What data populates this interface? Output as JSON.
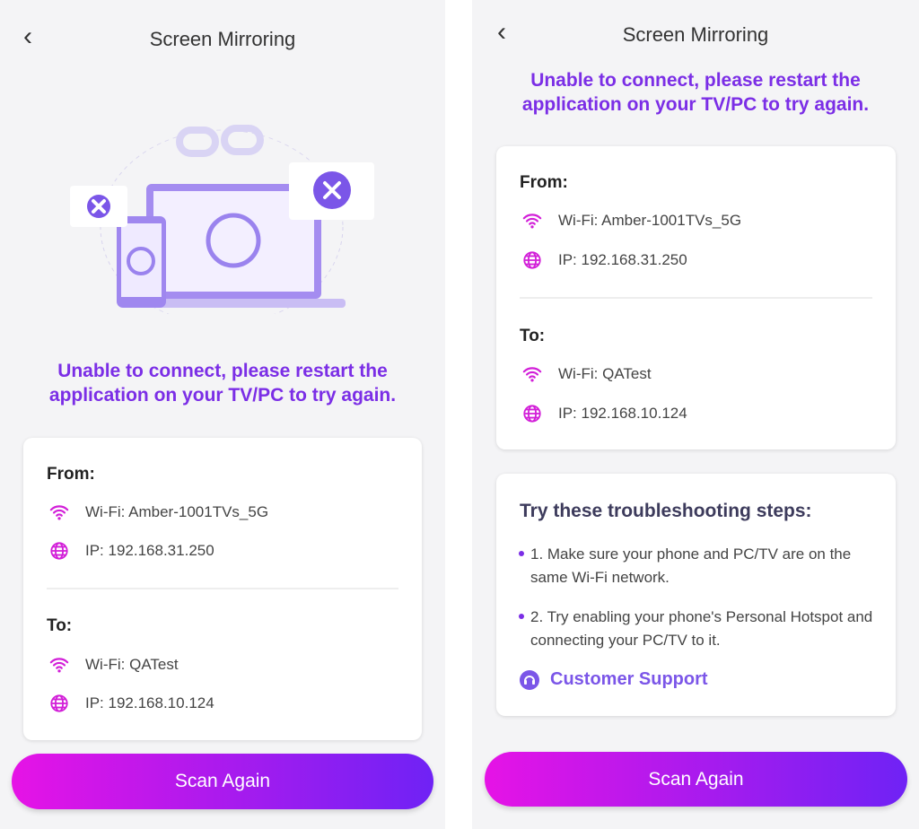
{
  "screens": [
    {
      "title": "Screen Mirroring",
      "message": "Unable to connect, please restart the application on your TV/PC to try again.",
      "from": {
        "label": "From:",
        "wifi": "Wi-Fi: Amber-1001TVs_5G",
        "ip": "IP: 192.168.31.250"
      },
      "to": {
        "label": "To:",
        "wifi": "Wi-Fi: QATest",
        "ip": "IP: 192.168.10.124"
      },
      "button": "Scan Again"
    },
    {
      "title": "Screen Mirroring",
      "message": "Unable to connect, please restart the application on your TV/PC to try again.",
      "from": {
        "label": "From:",
        "wifi": "Wi-Fi: Amber-1001TVs_5G",
        "ip": "IP: 192.168.31.250"
      },
      "to": {
        "label": "To:",
        "wifi": "Wi-Fi: QATest",
        "ip": "IP: 192.168.10.124"
      },
      "troubleshooting": {
        "title": "Try these troubleshooting steps:",
        "steps": [
          "1. Make sure your phone and PC/TV are on the same Wi-Fi network.",
          "2. Try enabling your phone's Personal Hotspot and connecting your PC/TV to it."
        ],
        "support": "Customer Support"
      },
      "button": "Scan Again"
    }
  ]
}
